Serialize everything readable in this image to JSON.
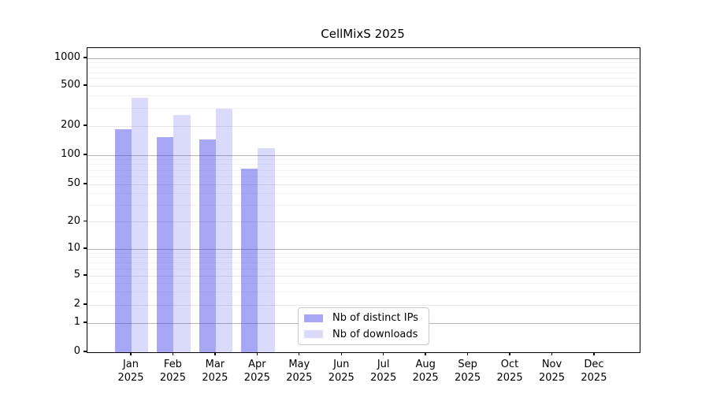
{
  "chart_data": {
    "type": "bar",
    "title": "CellMixS 2025",
    "categories": [
      "Jan",
      "Feb",
      "Mar",
      "Apr",
      "May",
      "Jun",
      "Jul",
      "Aug",
      "Sep",
      "Oct",
      "Nov",
      "Dec"
    ],
    "category_year": "2025",
    "series": [
      {
        "name": "Nb of distinct IPs",
        "fill": "rgba(60,60,235,0.45)",
        "values": [
          185,
          154,
          146,
          73,
          null,
          null,
          null,
          null,
          null,
          null,
          null,
          null
        ]
      },
      {
        "name": "Nb of downloads",
        "fill": "rgba(60,60,235,0.19)",
        "values": [
          385,
          258,
          298,
          119,
          null,
          null,
          null,
          null,
          null,
          null,
          null,
          null
        ]
      }
    ],
    "xlabel": "",
    "ylabel": "",
    "y_ticks": [
      0,
      1,
      2,
      5,
      10,
      20,
      50,
      100,
      200,
      500,
      1000
    ],
    "y_major_ticks": [
      1,
      10,
      100,
      1000
    ],
    "ylim": [
      0,
      1230
    ],
    "y_scale": "pseudo-log",
    "grid": "horizontal",
    "legend_position": "bottom-center",
    "colors": {
      "major_grid": "#b5b5b5",
      "minor_grid": "#f3f3f3",
      "axis": "#000000",
      "background": "#ffffff"
    }
  }
}
